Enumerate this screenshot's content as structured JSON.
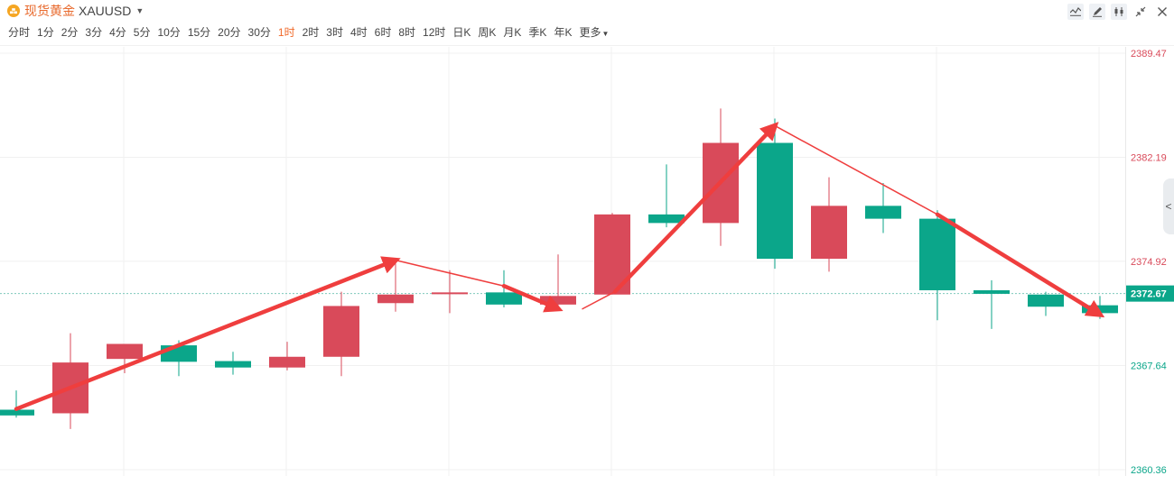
{
  "header": {
    "symbol_name": "现货黄金",
    "symbol_code": "XAUUSD",
    "icons": {
      "symbol": "gold-coin-icon",
      "dropdown": "caret-down-icon",
      "tools": [
        "indicator-icon",
        "draw-icon",
        "candle-style-icon",
        "shrink-icon",
        "close-icon"
      ],
      "side": "chevron-left-icon"
    }
  },
  "periods": [
    {
      "label": "分时",
      "active": false
    },
    {
      "label": "1分",
      "active": false
    },
    {
      "label": "2分",
      "active": false
    },
    {
      "label": "3分",
      "active": false
    },
    {
      "label": "4分",
      "active": false
    },
    {
      "label": "5分",
      "active": false
    },
    {
      "label": "10分",
      "active": false
    },
    {
      "label": "15分",
      "active": false
    },
    {
      "label": "20分",
      "active": false
    },
    {
      "label": "30分",
      "active": false
    },
    {
      "label": "1时",
      "active": true
    },
    {
      "label": "2时",
      "active": false
    },
    {
      "label": "3时",
      "active": false
    },
    {
      "label": "4时",
      "active": false
    },
    {
      "label": "6时",
      "active": false
    },
    {
      "label": "8时",
      "active": false
    },
    {
      "label": "12时",
      "active": false
    },
    {
      "label": "日K",
      "active": false
    },
    {
      "label": "周K",
      "active": false
    },
    {
      "label": "月K",
      "active": false
    },
    {
      "label": "季K",
      "active": false
    },
    {
      "label": "年K",
      "active": false
    }
  ],
  "more_label": "更多",
  "colors": {
    "up": "#d94a5a",
    "down": "#0ba68a",
    "active_period": "#f0692a",
    "symbol_name": "#e8692c",
    "arrow": "#ef3e3e",
    "grid": "#f1f1f1",
    "current_price_bg": "#0ba68a"
  },
  "chart_data": {
    "type": "candlestick",
    "ylim": [
      2360.36,
      2389.47
    ],
    "y_ticks": [
      {
        "label": "2389.47",
        "value": 2389.47,
        "zone": "up"
      },
      {
        "label": "2382.19",
        "value": 2382.19,
        "zone": "up"
      },
      {
        "label": "2374.92",
        "value": 2374.92,
        "zone": "up"
      },
      {
        "label": "2367.64",
        "value": 2367.64,
        "zone": "down"
      },
      {
        "label": "2360.36",
        "value": 2360.36,
        "zone": "down"
      }
    ],
    "current_price": {
      "label": "2372.67",
      "value": 2372.67
    },
    "candles": [
      {
        "open": 2364.55,
        "high": 2365.9,
        "low": 2364.0,
        "close": 2364.15
      },
      {
        "open": 2364.3,
        "high": 2369.9,
        "low": 2363.2,
        "close": 2367.85
      },
      {
        "open": 2368.1,
        "high": 2369.1,
        "low": 2367.1,
        "close": 2369.15
      },
      {
        "open": 2369.05,
        "high": 2369.4,
        "low": 2366.9,
        "close": 2367.9
      },
      {
        "open": 2367.95,
        "high": 2368.6,
        "low": 2367.0,
        "close": 2367.5
      },
      {
        "open": 2367.5,
        "high": 2369.3,
        "low": 2367.3,
        "close": 2368.25
      },
      {
        "open": 2368.25,
        "high": 2372.8,
        "low": 2366.9,
        "close": 2371.8
      },
      {
        "open": 2372.0,
        "high": 2374.9,
        "low": 2371.4,
        "close": 2372.6
      },
      {
        "open": 2372.65,
        "high": 2374.3,
        "low": 2371.3,
        "close": 2372.75
      },
      {
        "open": 2372.75,
        "high": 2374.3,
        "low": 2371.7,
        "close": 2371.9
      },
      {
        "open": 2371.9,
        "high": 2375.4,
        "low": 2371.6,
        "close": 2372.5
      },
      {
        "open": 2372.6,
        "high": 2378.3,
        "low": 2372.6,
        "close": 2378.2
      },
      {
        "open": 2378.2,
        "high": 2381.7,
        "low": 2377.3,
        "close": 2377.6
      },
      {
        "open": 2377.6,
        "high": 2385.6,
        "low": 2376.0,
        "close": 2383.2
      },
      {
        "open": 2383.2,
        "high": 2384.9,
        "low": 2374.4,
        "close": 2375.1
      },
      {
        "open": 2375.1,
        "high": 2380.8,
        "low": 2374.2,
        "close": 2378.8
      },
      {
        "open": 2378.8,
        "high": 2380.4,
        "low": 2376.9,
        "close": 2377.9
      },
      {
        "open": 2377.9,
        "high": 2378.5,
        "low": 2370.8,
        "close": 2372.9
      },
      {
        "open": 2372.9,
        "high": 2373.6,
        "low": 2370.2,
        "close": 2372.65
      },
      {
        "open": 2372.6,
        "high": 2372.8,
        "low": 2371.1,
        "close": 2371.75
      },
      {
        "open": 2371.85,
        "high": 2372.5,
        "low": 2370.9,
        "close": 2371.3
      }
    ],
    "annotations": [
      {
        "type": "arrow",
        "from": {
          "index": 0,
          "value": 2364.6
        },
        "to": {
          "index": 7,
          "value": 2375.0
        },
        "width": "thick"
      },
      {
        "type": "line",
        "from": {
          "index": 7,
          "value": 2375.0
        },
        "to": {
          "index": 9,
          "value": 2373.2
        }
      },
      {
        "type": "arrow",
        "from": {
          "index": 9,
          "value": 2373.2
        },
        "to": {
          "index": 10,
          "value": 2371.6
        },
        "width": "thick"
      },
      {
        "type": "line",
        "from": {
          "index": 10.45,
          "value": 2371.6
        },
        "to": {
          "index": 11.05,
          "value": 2372.8
        }
      },
      {
        "type": "arrow",
        "from": {
          "index": 11.05,
          "value": 2372.8
        },
        "to": {
          "index": 14.0,
          "value": 2384.4
        },
        "width": "thick"
      },
      {
        "type": "line",
        "from": {
          "index": 14.0,
          "value": 2384.4
        },
        "to": {
          "index": 17.0,
          "value": 2378.2
        }
      },
      {
        "type": "arrow",
        "from": {
          "index": 17.0,
          "value": 2378.2
        },
        "to": {
          "index": 20.0,
          "value": 2371.2
        },
        "width": "thick"
      }
    ]
  }
}
